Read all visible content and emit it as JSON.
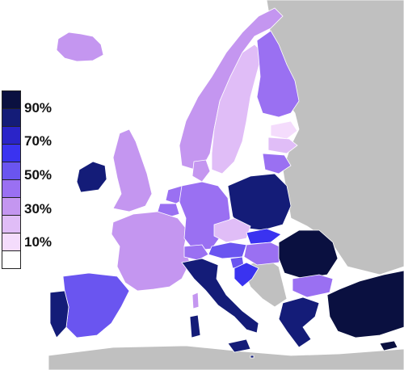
{
  "legend": {
    "labels": [
      "90%",
      "70%",
      "50%",
      "30%",
      "10%"
    ],
    "scale": [
      {
        "color": "#0a1040"
      },
      {
        "color": "#141c78"
      },
      {
        "color": "#2a24c8"
      },
      {
        "color": "#3a33f0"
      },
      {
        "color": "#6a55f0"
      },
      {
        "color": "#9a70f2"
      },
      {
        "color": "#c496f0"
      },
      {
        "color": "#e0bdf7"
      },
      {
        "color": "#f4dcfc"
      },
      {
        "color": "#ffffff"
      }
    ]
  },
  "colors": {
    "non_data": "#c0c0c0",
    "sea": "#ffffff"
  }
}
